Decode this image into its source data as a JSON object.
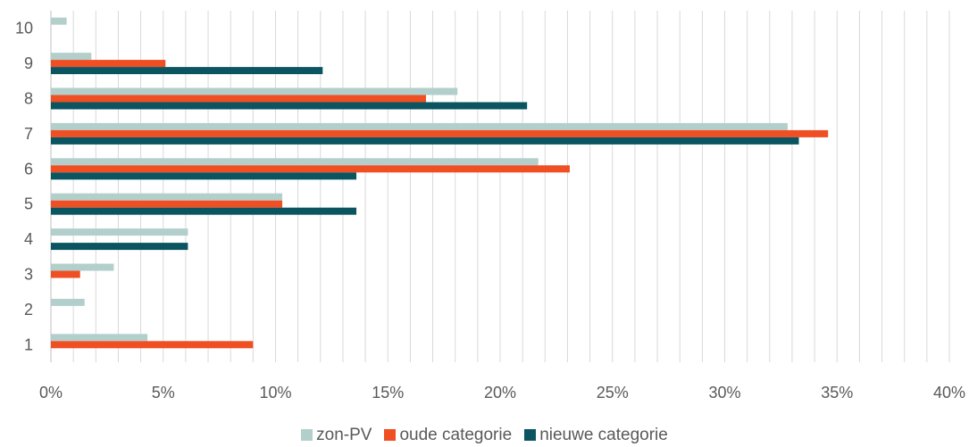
{
  "chart_data": {
    "type": "bar",
    "orientation": "horizontal",
    "categories": [
      "1",
      "2",
      "3",
      "4",
      "5",
      "6",
      "7",
      "8",
      "9",
      "10"
    ],
    "series": [
      {
        "name": "zon-PV",
        "color": "#b3cfcc",
        "values": [
          4.3,
          1.5,
          2.8,
          6.1,
          10.3,
          21.7,
          32.8,
          18.1,
          1.8,
          0.7
        ]
      },
      {
        "name": "oude categorie",
        "color": "#f04e23",
        "values": [
          9.0,
          0,
          1.3,
          0,
          10.3,
          23.1,
          34.6,
          16.7,
          5.1,
          0
        ]
      },
      {
        "name": "nieuwe categorie",
        "color": "#0b5560",
        "values": [
          0,
          0,
          0,
          6.1,
          13.6,
          13.6,
          33.3,
          21.2,
          12.1,
          0
        ]
      }
    ],
    "xlim": [
      0,
      40
    ],
    "xticks": [
      "0%",
      "5%",
      "10%",
      "15%",
      "20%",
      "25%",
      "30%",
      "35%",
      "40%"
    ],
    "gridlines": "vertical, every 1%",
    "legend": "bottom-center",
    "title": "",
    "xlabel": "",
    "ylabel": ""
  }
}
